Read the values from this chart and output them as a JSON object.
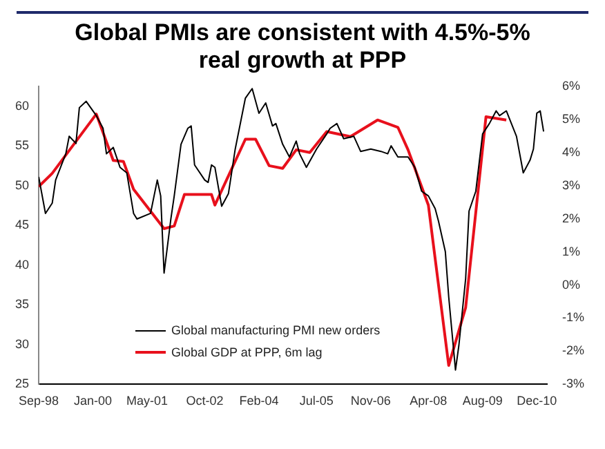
{
  "chart_data": {
    "type": "line",
    "title": "Global PMIs are consistent with 4.5%-5% real growth at PPP",
    "xlim": [
      "1998-09",
      "2011-03"
    ],
    "xticks": [
      {
        "value": "1998-09",
        "label": "Sep-98"
      },
      {
        "value": "2000-01",
        "label": "Jan-00"
      },
      {
        "value": "2001-05",
        "label": "May-01"
      },
      {
        "value": "2002-10",
        "label": "Oct-02"
      },
      {
        "value": "2004-02",
        "label": "Feb-04"
      },
      {
        "value": "2005-07",
        "label": "Jul-05"
      },
      {
        "value": "2006-11",
        "label": "Nov-06"
      },
      {
        "value": "2008-04",
        "label": "Apr-08"
      },
      {
        "value": "2009-08",
        "label": "Aug-09"
      },
      {
        "value": "2010-12",
        "label": "Dec-10"
      }
    ],
    "ylim": [
      25,
      62.5
    ],
    "yticks": [
      25,
      30,
      35,
      40,
      45,
      50,
      55,
      60
    ],
    "y2lim": [
      -3,
      6
    ],
    "y2ticks": [
      {
        "value": -3,
        "label": "-3%"
      },
      {
        "value": -2,
        "label": "-2%"
      },
      {
        "value": -1,
        "label": "-1%"
      },
      {
        "value": 0,
        "label": "0%"
      },
      {
        "value": 1,
        "label": "1%"
      },
      {
        "value": 2,
        "label": "2%"
      },
      {
        "value": 3,
        "label": "3%"
      },
      {
        "value": 4,
        "label": "4%"
      },
      {
        "value": 5,
        "label": "5%"
      },
      {
        "value": 6,
        "label": "6%"
      }
    ],
    "grid": false,
    "legend": "bottom",
    "marker": "none",
    "line_style": "solid",
    "series": [
      {
        "name": "Global manufacturing PMI new orders",
        "color": "#000000",
        "x": [
          "1998-09",
          "1998-11",
          "1999-01",
          "1999-02",
          "1999-05",
          "1999-06",
          "1999-08",
          "1999-09",
          "1999-11",
          "2000-02",
          "2000-04",
          "2000-05",
          "2000-07",
          "2000-09",
          "2000-11",
          "2001-01",
          "2001-02",
          "2001-06",
          "2001-08",
          "2001-09",
          "2001-10",
          "2001-12",
          "2002-01",
          "2002-03",
          "2002-05",
          "2002-06",
          "2002-07",
          "2002-10",
          "2002-11",
          "2002-12",
          "2003-01",
          "2003-03",
          "2003-05",
          "2003-07",
          "2003-10",
          "2003-12",
          "2004-02",
          "2004-04",
          "2004-06",
          "2004-07",
          "2004-09",
          "2004-11",
          "2005-01",
          "2005-02",
          "2005-04",
          "2005-07",
          "2005-10",
          "2005-11",
          "2006-01",
          "2006-03",
          "2006-06",
          "2006-08",
          "2006-11",
          "2007-02",
          "2007-04",
          "2007-05",
          "2007-07",
          "2007-10",
          "2007-12",
          "2008-02",
          "2008-04",
          "2008-06",
          "2008-07",
          "2008-09",
          "2008-10",
          "2008-12",
          "2009-01",
          "2009-03",
          "2009-04",
          "2009-06",
          "2009-08",
          "2009-10",
          "2009-12",
          "2010-01",
          "2010-03",
          "2010-06",
          "2010-08",
          "2010-10",
          "2010-11",
          "2010-12",
          "2011-01",
          "2011-02"
        ],
        "values": [
          51.1,
          46.5,
          47.8,
          50.7,
          54,
          56.2,
          55.3,
          59.8,
          60.6,
          58.8,
          57.2,
          54,
          54.8,
          52.3,
          51.6,
          46.5,
          45.8,
          46.5,
          50.7,
          48.7,
          39,
          45.8,
          48.7,
          55.2,
          57.2,
          57.5,
          52.6,
          50.7,
          50.4,
          52.6,
          52.3,
          47.4,
          49,
          54.6,
          61,
          62.2,
          59.1,
          60.4,
          57.5,
          57.8,
          55.2,
          53.6,
          55.6,
          54,
          52.3,
          54.6,
          56.5,
          57.2,
          57.8,
          55.9,
          56.2,
          54.3,
          54.6,
          54.3,
          54,
          55,
          53.6,
          53.6,
          52.3,
          49.3,
          48.7,
          47.1,
          45.5,
          41.7,
          36,
          26.8,
          29.9,
          38.3,
          46.8,
          49.3,
          56.5,
          57.8,
          59.4,
          58.8,
          59.4,
          56.2,
          51.6,
          53.2,
          54.6,
          59.1,
          59.4,
          56.8
        ]
      },
      {
        "name": "Global GDP at PPP, 6m lag",
        "color": "#e8101c",
        "axis": "y2",
        "x": [
          "1998-09",
          "1999-01",
          "2000-02",
          "2000-07",
          "2000-10",
          "2001-01",
          "2001-10",
          "2002-01",
          "2002-04",
          "2002-12",
          "2003-01",
          "2003-10",
          "2004-01",
          "2004-05",
          "2004-09",
          "2005-01",
          "2005-05",
          "2005-10",
          "2006-05",
          "2007-01",
          "2007-07",
          "2007-10",
          "2008-04",
          "2008-10",
          "2009-03",
          "2009-09",
          "2010-03"
        ],
        "values": [
          2.97,
          3.37,
          5.16,
          3.76,
          3.73,
          2.89,
          1.7,
          1.78,
          2.73,
          2.73,
          2.41,
          4.4,
          4.4,
          3.6,
          3.52,
          4.08,
          4,
          4.63,
          4.48,
          4.98,
          4.76,
          4.08,
          2.41,
          -2.43,
          -0.68,
          5.08,
          4.98
        ]
      }
    ]
  }
}
